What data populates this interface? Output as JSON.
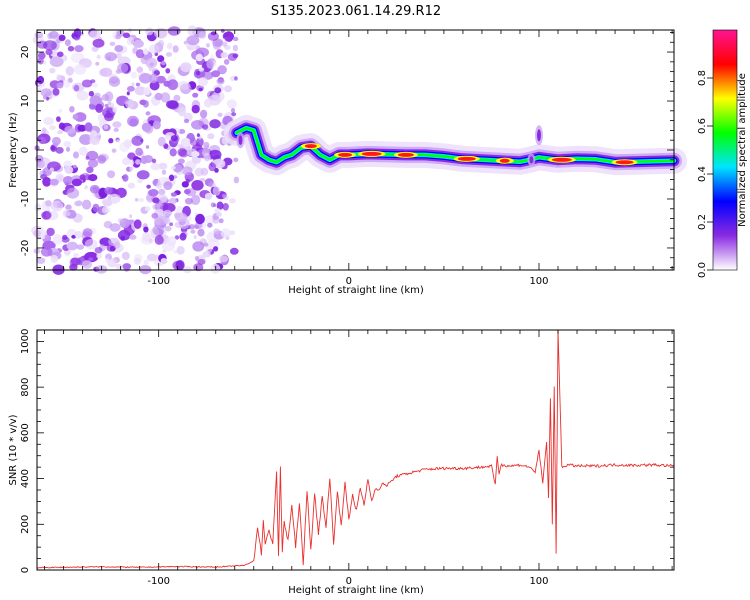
{
  "figure": {
    "title": "S135.2023.061.14.29.R12"
  },
  "chart_data": [
    {
      "type": "heatmap",
      "xlabel": "Height of straight line (km)",
      "ylabel": "Frequency (Hz)",
      "xlim": [
        -164,
        171
      ],
      "ylim": [
        -24.5,
        24.5
      ],
      "xticks": [
        -100,
        0,
        100
      ],
      "yticks": [
        -20,
        -10,
        0,
        10,
        20
      ],
      "colorbar": {
        "label": "Normalized spectral amplitude",
        "range": [
          0.0,
          1.0
        ],
        "ticks": [
          "0.0",
          "0.2",
          "0.4",
          "0.6",
          "0.8"
        ],
        "colors": [
          "#ffffff",
          "#8a2be2",
          "#0000ff",
          "#00e5ff",
          "#00ff00",
          "#ffff00",
          "#ff0000",
          "#ff1493"
        ]
      },
      "noise_region_x": [
        -164,
        -59
      ],
      "ridge": {
        "x": [
          -59,
          -54,
          -50,
          -46,
          -42,
          -38,
          -34,
          -30,
          -25,
          -20,
          -15,
          -10,
          -5,
          0,
          10,
          20,
          30,
          40,
          50,
          60,
          70,
          80,
          90,
          95,
          100,
          110,
          120,
          130,
          140,
          150,
          160,
          171
        ],
        "y": [
          3.5,
          4.5,
          4,
          -1,
          -2,
          -2.5,
          -1.5,
          -1,
          0.5,
          0.8,
          -1,
          -2,
          -1,
          -1,
          -0.8,
          -0.9,
          -1,
          -1,
          -1.3,
          -1.8,
          -2,
          -2.2,
          -2.4,
          -2,
          -1.5,
          -2,
          -1.8,
          -1.9,
          -2.5,
          -2.4,
          -2.3,
          -2.2
        ]
      }
    },
    {
      "type": "line",
      "xlabel": "Height of straight line (km)",
      "ylabel": "SNR (10 * v/v)",
      "xlim": [
        -164,
        171
      ],
      "ylim": [
        0,
        1050
      ],
      "xticks": [
        -100,
        0,
        100
      ],
      "yticks": [
        0,
        200,
        400,
        600,
        800,
        1000
      ],
      "series": [
        {
          "color": "#e8302e",
          "x": [
            -164,
            -150,
            -130,
            -110,
            -90,
            -70,
            -55,
            -50,
            -48,
            -46,
            -45,
            -44,
            -42,
            -40,
            -38,
            -37,
            -36,
            -35,
            -34,
            -32,
            -30,
            -28,
            -26,
            -24,
            -22,
            -20,
            -18,
            -16,
            -14,
            -12,
            -10,
            -8,
            -6,
            -4,
            -2,
            0,
            2,
            4,
            6,
            8,
            10,
            12,
            14,
            16,
            18,
            20,
            25,
            30,
            40,
            50,
            60,
            70,
            75,
            77,
            78,
            79,
            80,
            85,
            90,
            95,
            98,
            100,
            102,
            104,
            105,
            106,
            107,
            108,
            109,
            110,
            112,
            115,
            120,
            130,
            140,
            150,
            160,
            171
          ],
          "y": [
            10,
            12,
            14,
            12,
            15,
            13,
            20,
            40,
            190,
            70,
            220,
            110,
            170,
            120,
            430,
            60,
            450,
            80,
            210,
            130,
            280,
            100,
            300,
            20,
            350,
            90,
            330,
            160,
            320,
            190,
            400,
            120,
            340,
            200,
            380,
            220,
            330,
            260,
            360,
            280,
            400,
            300,
            360,
            350,
            380,
            370,
            410,
            420,
            440,
            445,
            445,
            450,
            455,
            370,
            500,
            420,
            460,
            455,
            460,
            450,
            430,
            520,
            380,
            560,
            320,
            750,
            200,
            800,
            80,
            1050,
            450,
            460,
            455,
            455,
            460,
            458,
            460,
            455
          ]
        }
      ]
    }
  ]
}
